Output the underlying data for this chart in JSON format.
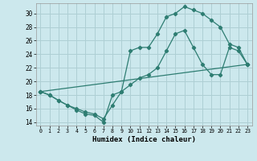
{
  "title": "",
  "xlabel": "Humidex (Indice chaleur)",
  "ylabel": "",
  "bg_color": "#cce8ed",
  "line_color": "#2e7d72",
  "grid_color": "#aecfd4",
  "xlim": [
    -0.5,
    23.5
  ],
  "ylim": [
    13.5,
    31.5
  ],
  "xticks": [
    0,
    1,
    2,
    3,
    4,
    5,
    6,
    7,
    8,
    9,
    10,
    11,
    12,
    13,
    14,
    15,
    16,
    17,
    18,
    19,
    20,
    21,
    22,
    23
  ],
  "yticks": [
    14,
    16,
    18,
    20,
    22,
    24,
    26,
    28,
    30
  ],
  "line1_x": [
    0,
    1,
    2,
    3,
    4,
    5,
    6,
    7,
    8,
    9,
    10,
    11,
    12,
    13,
    14,
    15,
    16,
    17,
    18,
    19,
    20,
    21,
    22,
    23
  ],
  "line1_y": [
    18.5,
    18.0,
    17.2,
    16.5,
    15.8,
    15.2,
    15.0,
    14.0,
    18.0,
    18.5,
    19.5,
    20.5,
    21.0,
    22.0,
    24.5,
    27.0,
    27.5,
    25.0,
    22.5,
    21.0,
    21.0,
    25.0,
    24.5,
    22.5
  ],
  "line2_x": [
    0,
    1,
    2,
    3,
    4,
    5,
    6,
    7,
    8,
    9,
    10,
    11,
    12,
    13,
    14,
    15,
    16,
    17,
    18,
    19,
    20,
    21,
    22,
    23
  ],
  "line2_y": [
    18.5,
    18.0,
    17.2,
    16.5,
    16.0,
    15.5,
    15.2,
    14.5,
    16.5,
    18.5,
    24.5,
    25.0,
    25.0,
    27.0,
    29.5,
    30.0,
    31.0,
    30.5,
    30.0,
    29.0,
    28.0,
    25.5,
    25.0,
    22.5
  ],
  "line3_x": [
    0,
    23
  ],
  "line3_y": [
    18.5,
    22.5
  ]
}
